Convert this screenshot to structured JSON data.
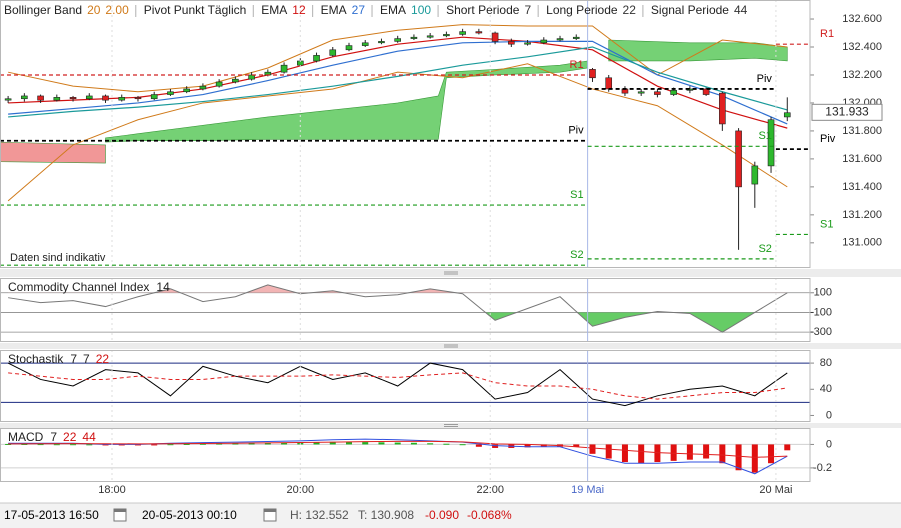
{
  "chart_data": [
    {
      "type": "candlestick",
      "xlim": [
        -0.5,
        49.4
      ],
      "ylim": [
        130.82,
        132.736
      ],
      "yticks": [
        {
          "value": 131.0,
          "label": "131.000"
        },
        {
          "value": 131.2,
          "label": "131.200"
        },
        {
          "value": 131.4,
          "label": "131.400"
        },
        {
          "value": 131.6,
          "label": "131.600"
        },
        {
          "value": 131.8,
          "label": "131.800"
        },
        {
          "value": 132.0,
          "label": "132.000"
        },
        {
          "value": 132.2,
          "label": "132.200"
        },
        {
          "value": 132.4,
          "label": "132.400"
        },
        {
          "value": 132.6,
          "label": "132.600"
        }
      ],
      "last_price": 131.933,
      "note": "Daten sind indikativ",
      "up_color": "#2db82d",
      "down_color": "#e02020",
      "x": [
        0,
        1,
        2,
        3,
        4,
        5,
        6,
        7,
        8,
        9,
        10,
        11,
        12,
        13,
        14,
        15,
        16,
        17,
        18,
        19,
        20,
        21,
        22,
        23,
        24,
        25,
        26,
        27,
        28,
        29,
        30,
        31,
        32,
        33,
        34,
        35,
        36,
        37,
        38,
        39,
        40,
        41,
        42,
        43,
        44,
        45,
        46,
        47,
        48
      ],
      "open": [
        132.02,
        132.03,
        132.05,
        132.02,
        132.04,
        132.03,
        132.05,
        132.02,
        132.04,
        132.03,
        132.06,
        132.08,
        132.1,
        132.12,
        132.15,
        132.17,
        132.2,
        132.22,
        132.27,
        132.3,
        132.34,
        132.38,
        132.41,
        132.43,
        132.44,
        132.46,
        132.47,
        132.48,
        132.49,
        132.51,
        132.5,
        132.44,
        132.42,
        132.43,
        132.45,
        132.46,
        132.24,
        132.18,
        132.1,
        132.07,
        132.08,
        132.06,
        132.09,
        132.1,
        132.07,
        131.8,
        131.42,
        131.55,
        131.9
      ],
      "high": [
        132.05,
        132.07,
        132.06,
        132.06,
        132.05,
        132.07,
        132.06,
        132.06,
        132.05,
        132.08,
        132.1,
        132.12,
        132.14,
        132.17,
        132.19,
        132.22,
        132.24,
        132.29,
        132.32,
        132.36,
        132.4,
        132.43,
        132.45,
        132.46,
        132.48,
        132.49,
        132.5,
        132.51,
        132.53,
        132.53,
        132.51,
        132.46,
        132.45,
        132.47,
        132.48,
        132.49,
        132.25,
        132.2,
        132.12,
        132.1,
        132.1,
        132.11,
        132.12,
        132.11,
        132.08,
        131.82,
        131.58,
        131.9,
        132.04
      ],
      "low": [
        132.0,
        132.01,
        132.0,
        132.01,
        132.01,
        132.02,
        132.0,
        132.01,
        132.01,
        132.02,
        132.05,
        132.07,
        132.09,
        132.11,
        132.14,
        132.16,
        132.19,
        132.21,
        132.26,
        132.29,
        132.33,
        132.37,
        132.4,
        132.42,
        132.43,
        132.45,
        132.46,
        132.47,
        132.48,
        132.49,
        132.42,
        132.4,
        132.41,
        132.42,
        132.44,
        132.45,
        132.15,
        132.08,
        132.05,
        132.05,
        132.04,
        132.05,
        132.07,
        132.05,
        131.8,
        130.95,
        131.25,
        131.5,
        131.87
      ],
      "close": [
        132.03,
        132.05,
        132.02,
        132.04,
        132.03,
        132.05,
        132.02,
        132.04,
        132.03,
        132.06,
        132.08,
        132.1,
        132.12,
        132.15,
        132.17,
        132.2,
        132.22,
        132.27,
        132.3,
        132.34,
        132.38,
        132.41,
        132.43,
        132.44,
        132.46,
        132.47,
        132.48,
        132.49,
        132.51,
        132.5,
        132.44,
        132.42,
        132.43,
        132.45,
        132.46,
        132.47,
        132.18,
        132.1,
        132.07,
        132.08,
        132.06,
        132.09,
        132.1,
        132.06,
        131.85,
        131.4,
        131.55,
        131.88,
        131.93
      ],
      "clouds": [
        {
          "color": "#f08c8c",
          "x": [
            -0.5,
            6
          ],
          "upper": [
            131.72,
            131.7
          ],
          "lower": [
            131.58,
            131.57
          ]
        },
        {
          "color": "#66cc66",
          "x": [
            6,
            8,
            12,
            16,
            20,
            24,
            26.5,
            27,
            30,
            34,
            35.7
          ],
          "upper": [
            131.75,
            131.78,
            131.84,
            131.9,
            131.95,
            132.0,
            132.05,
            132.22,
            132.24,
            132.27,
            132.3
          ],
          "lower": [
            131.72,
            131.73,
            131.73,
            131.74,
            131.74,
            131.74,
            131.74,
            132.18,
            132.2,
            132.22,
            132.25
          ]
        },
        {
          "color": "#66cc66",
          "x": [
            37,
            42,
            46,
            48
          ],
          "upper": [
            132.45,
            132.43,
            132.43,
            132.4
          ],
          "lower": [
            132.3,
            132.3,
            132.32,
            132.3
          ]
        }
      ],
      "bollinger": {
        "name": "Bollinger Band",
        "params": [
          20,
          {
            "value": 2,
            "label": "2.00"
          }
        ],
        "color": "#d07a1a",
        "x": [
          0,
          4,
          8,
          12,
          16,
          20,
          24,
          28,
          32,
          36,
          40,
          44,
          48
        ],
        "upper": [
          132.22,
          132.12,
          132.08,
          132.12,
          132.25,
          132.45,
          132.52,
          132.56,
          132.55,
          132.55,
          132.2,
          132.45,
          132.4
        ],
        "lower": [
          131.3,
          131.7,
          131.88,
          132.0,
          132.05,
          132.1,
          132.22,
          132.18,
          132.28,
          132.1,
          131.98,
          131.7,
          131.4
        ]
      },
      "pivots": {
        "name": "Pivot Punkt Täglich",
        "levels": [
          {
            "label": "R1",
            "value": 132.2,
            "x": [
              -0.5,
              35.7
            ],
            "color": "#d02020"
          },
          {
            "label": "Piv",
            "value": 131.73,
            "x": [
              -0.5,
              35.7
            ],
            "color": "#000000"
          },
          {
            "label": "S1",
            "value": 131.27,
            "x": [
              -0.5,
              35.7
            ],
            "color": "#1a9a1a"
          },
          {
            "label": "S2",
            "value": 130.84,
            "x": [
              -0.5,
              35.7
            ],
            "color": "#1a9a1a"
          },
          {
            "label": "Piv",
            "value": 132.1,
            "x": [
              35.7,
              47.3
            ],
            "color": "#000000"
          },
          {
            "label": "S1",
            "value": 131.69,
            "x": [
              35.7,
              47.3
            ],
            "color": "#1a9a1a"
          },
          {
            "label": "S2",
            "value": 130.885,
            "x": [
              35.7,
              47.3
            ],
            "color": "#1a9a1a"
          },
          {
            "label": "R1",
            "value": 132.42,
            "x": [
              47.3,
              49.4
            ],
            "color": "#d02020"
          },
          {
            "label": "Piv",
            "value": 131.67,
            "x": [
              47.3,
              49.4
            ],
            "color": "#000000"
          },
          {
            "label": "S1",
            "value": 131.06,
            "x": [
              47.3,
              49.4
            ],
            "color": "#1a9a1a"
          }
        ]
      },
      "overlays": {
        "x": [
          0,
          4,
          8,
          12,
          16,
          20,
          24,
          28,
          32,
          36,
          40,
          44,
          48
        ],
        "series": [
          {
            "name": "EMA",
            "period": 12,
            "color": "#d01010",
            "values": [
              132.0,
              132.02,
              132.04,
              132.1,
              132.2,
              132.33,
              132.42,
              132.47,
              132.44,
              132.38,
              132.12,
              131.95,
              131.82
            ]
          },
          {
            "name": "EMA",
            "period": 27,
            "color": "#2f6fd0",
            "values": [
              131.92,
              131.96,
              132.0,
              132.06,
              132.16,
              132.27,
              132.37,
              132.43,
              132.44,
              132.44,
              132.2,
              132.05,
              131.85
            ]
          },
          {
            "name": "EMA",
            "period": 100,
            "color": "#1a9a9a",
            "values": [
              131.9,
              131.94,
              131.97,
              132.01,
              132.06,
              132.12,
              132.19,
              132.27,
              132.33,
              132.4,
              132.22,
              132.08,
              131.95
            ]
          }
        ]
      },
      "macd_settings": [
        {
          "name": "Short Periode",
          "value": 7
        },
        {
          "name": "Long Periode",
          "value": 22
        },
        {
          "name": "Signal Periode",
          "value": 44
        }
      ]
    },
    {
      "type": "line",
      "title": "Commodity Channel Index",
      "params": [
        14
      ],
      "param_colors": [
        "#222222"
      ],
      "xlim": [
        -0.5,
        49.4
      ],
      "ylim": [
        -400,
        250
      ],
      "yticks": [
        100,
        -100,
        -300
      ],
      "fill_colors": [
        "#f2b4b4",
        "#66cc66"
      ],
      "x": [
        0,
        2,
        4,
        6,
        8,
        10,
        12,
        14,
        16,
        18,
        20,
        22,
        24,
        26,
        28,
        30,
        32,
        34,
        36,
        38,
        40,
        42,
        44,
        46,
        48
      ],
      "series": [
        {
          "color": "#777777",
          "values": [
            50,
            0,
            20,
            -40,
            60,
            140,
            10,
            60,
            180,
            90,
            120,
            60,
            80,
            140,
            90,
            -180,
            -60,
            60,
            -240,
            -150,
            -90,
            -110,
            -300,
            -100,
            100
          ]
        }
      ]
    },
    {
      "type": "line",
      "title": "Stochastik",
      "params": [
        7,
        7,
        22
      ],
      "param_colors": [
        "#222222",
        "#222222",
        "#d01010"
      ],
      "xlim": [
        -0.5,
        49.4
      ],
      "ylim": [
        -10,
        100
      ],
      "yticks": [
        80,
        40,
        0
      ],
      "levels": [
        80,
        20
      ],
      "level_color": "#1a2a80",
      "x": [
        0,
        2,
        4,
        6,
        8,
        10,
        12,
        14,
        16,
        18,
        20,
        22,
        24,
        26,
        28,
        30,
        32,
        34,
        36,
        38,
        40,
        42,
        44,
        46,
        48
      ],
      "series": [
        {
          "color": "#000000",
          "dashed": false,
          "values": [
            80,
            55,
            45,
            70,
            65,
            30,
            75,
            60,
            50,
            75,
            55,
            65,
            45,
            80,
            70,
            25,
            35,
            70,
            25,
            15,
            30,
            40,
            45,
            30,
            65
          ]
        },
        {
          "color": "#e02020",
          "dashed": true,
          "values": [
            65,
            60,
            55,
            55,
            60,
            55,
            55,
            60,
            60,
            60,
            62,
            60,
            58,
            62,
            65,
            50,
            45,
            45,
            40,
            30,
            25,
            30,
            35,
            35,
            42
          ]
        }
      ]
    },
    {
      "type": "bar",
      "title": "MACD",
      "params": [
        7,
        22,
        44
      ],
      "param_colors": [
        "#222222",
        "#d01010",
        "#d01010"
      ],
      "xlim": [
        -0.5,
        49.4
      ],
      "ylim": [
        -0.32,
        0.14
      ],
      "yticks": [
        0,
        -0.2
      ],
      "xticks": [
        {
          "value": 6.4,
          "label": "18:00"
        },
        {
          "value": 18.0,
          "label": "20:00"
        },
        {
          "value": 29.7,
          "label": "22:00"
        },
        {
          "value": 35.7,
          "label": "19 Mai"
        },
        {
          "value": 47.3,
          "label": "20 Mai"
        }
      ],
      "xtick_label_colors": [
        "#333333",
        "#333333",
        "#333333",
        "#4a68c8",
        "#333333"
      ],
      "up_color": "#22b022",
      "down_color": "#e01010",
      "x": [
        0,
        1,
        2,
        3,
        4,
        5,
        6,
        7,
        8,
        9,
        10,
        11,
        12,
        13,
        14,
        15,
        16,
        17,
        18,
        19,
        20,
        21,
        22,
        23,
        24,
        25,
        26,
        27,
        28,
        29,
        30,
        31,
        32,
        33,
        34,
        35,
        36,
        37,
        38,
        39,
        40,
        41,
        42,
        43,
        44,
        45,
        46,
        47,
        48
      ],
      "values": [
        0.004,
        0.004,
        0.003,
        0.002,
        0.002,
        0.001,
        -0.002,
        -0.004,
        -0.005,
        -0.003,
        0.002,
        0.004,
        0.006,
        0.008,
        0.01,
        0.012,
        0.014,
        0.016,
        0.018,
        0.02,
        0.022,
        0.022,
        0.02,
        0.018,
        0.016,
        0.014,
        0.01,
        0.006,
        0.002,
        -0.02,
        -0.03,
        -0.03,
        -0.025,
        -0.02,
        -0.02,
        -0.02,
        -0.08,
        -0.12,
        -0.15,
        -0.16,
        -0.15,
        -0.14,
        -0.13,
        -0.12,
        -0.16,
        -0.22,
        -0.24,
        -0.16,
        -0.05
      ],
      "lines": {
        "x": [
          0,
          2,
          4,
          6,
          8,
          10,
          12,
          14,
          16,
          18,
          20,
          22,
          24,
          26,
          28,
          30,
          32,
          34,
          36,
          38,
          40,
          42,
          44,
          46,
          48
        ],
        "series": [
          {
            "color": "#3050e0",
            "values": [
              0.01,
              0.01,
              0.01,
              0.0,
              0.0,
              0.01,
              0.015,
              0.02,
              0.025,
              0.03,
              0.04,
              0.045,
              0.04,
              0.03,
              0.02,
              -0.01,
              -0.02,
              -0.02,
              -0.1,
              -0.16,
              -0.16,
              -0.15,
              -0.15,
              -0.25,
              -0.1
            ]
          },
          {
            "color": "#e02020",
            "values": [
              0.005,
              0.006,
              0.007,
              0.006,
              0.005,
              0.006,
              0.008,
              0.01,
              0.013,
              0.016,
              0.02,
              0.024,
              0.026,
              0.026,
              0.022,
              0.005,
              0.0,
              -0.01,
              -0.03,
              -0.05,
              -0.07,
              -0.08,
              -0.09,
              -0.11,
              -0.1
            ]
          }
        ]
      }
    }
  ],
  "status_bar": {
    "from": "17-05-2013 16:50",
    "to": "20-05-2013 00:10",
    "high": "H: 132.552",
    "low": "T: 130.908",
    "change": "-0.090",
    "change_pct": "-0.068%"
  }
}
